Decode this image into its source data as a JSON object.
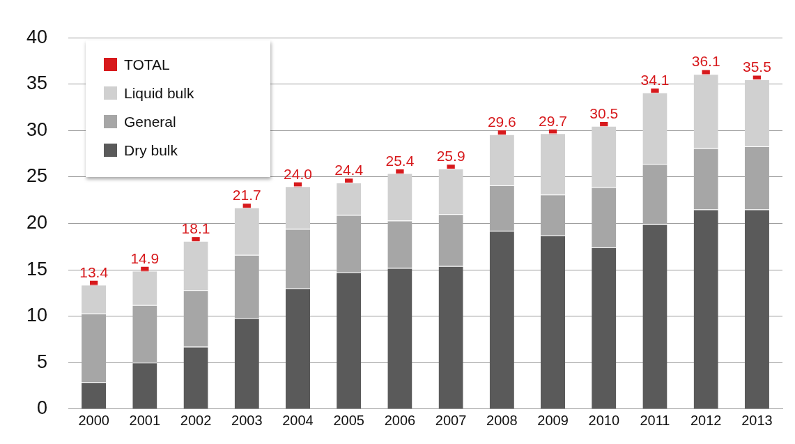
{
  "chart_data": {
    "type": "bar",
    "stacked": true,
    "categories": [
      "2000",
      "2001",
      "2002",
      "2003",
      "2004",
      "2005",
      "2006",
      "2007",
      "2008",
      "2009",
      "2010",
      "2011",
      "2012",
      "2013"
    ],
    "ylim": [
      0,
      40
    ],
    "yticks": [
      0,
      5,
      10,
      15,
      20,
      25,
      30,
      35,
      40
    ],
    "grid": "y",
    "legend": "top left",
    "series": [
      {
        "name": "Dry bulk",
        "color": "#5a5a5a",
        "values": [
          2.9,
          5.0,
          6.7,
          9.8,
          13.0,
          14.7,
          15.2,
          15.4,
          19.2,
          18.7,
          17.4,
          19.9,
          21.5,
          21.5
        ]
      },
      {
        "name": "General",
        "color": "#a6a6a6",
        "values": [
          7.4,
          6.2,
          6.1,
          6.8,
          6.4,
          6.2,
          5.1,
          5.6,
          4.9,
          4.4,
          6.5,
          6.5,
          6.6,
          6.8
        ]
      },
      {
        "name": "Liquid bulk",
        "color": "#d0d0d0",
        "values": [
          3.1,
          3.7,
          5.3,
          5.1,
          4.6,
          3.5,
          5.1,
          4.9,
          5.5,
          6.6,
          6.6,
          7.7,
          8.0,
          7.2
        ]
      },
      {
        "name": "TOTAL",
        "type": "scatter",
        "color": "#d7191c",
        "values": [
          13.4,
          14.9,
          18.1,
          21.7,
          24.0,
          24.4,
          25.4,
          25.9,
          29.6,
          29.7,
          30.5,
          34.1,
          36.1,
          35.5
        ],
        "value_labels": [
          "13.4",
          "14.9",
          "18.1",
          "21.7",
          "24.0",
          "24.4",
          "25.4",
          "25.9",
          "29.6",
          "29.7",
          "30.5",
          "34.1",
          "36.1",
          "35.5"
        ]
      }
    ]
  }
}
